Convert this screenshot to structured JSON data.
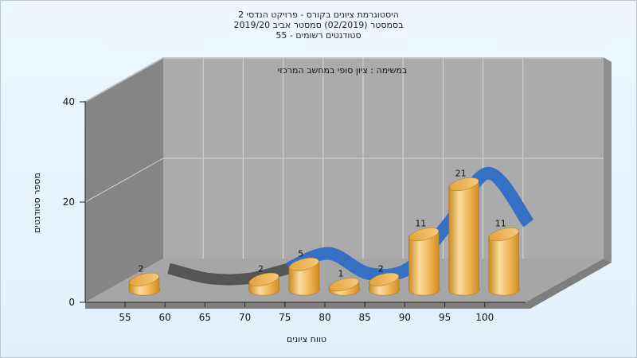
{
  "chart_data": {
    "type": "bar",
    "title_lines": [
      "היסטוגרמת ציונים בקורס - פרויקט הנדסי 2",
      "בסמסטר  (02/2019)  סמסטר אביב 2019/20",
      "סטודנטים רשומים - 55"
    ],
    "subtitle": "במשימה : ציון סופי במחשב המרכזי",
    "xlabel": "טווח ציונים",
    "ylabel": "מספר סטודנטים",
    "ylim": [
      0,
      40
    ],
    "yticks": [
      0,
      20,
      40
    ],
    "categories": [
      "55",
      "60",
      "65",
      "70",
      "75",
      "80",
      "85",
      "90",
      "95",
      "100"
    ],
    "values": [
      2,
      0,
      0,
      2,
      5,
      1,
      2,
      11,
      21,
      11
    ],
    "data_labels": [
      "2",
      "",
      "",
      "2",
      "5",
      "1",
      "2",
      "11",
      "21",
      "11"
    ],
    "grid": true,
    "legend": "none",
    "colors": {
      "bar_light": "#fbdca0",
      "bar_mid": "#f0b050",
      "bar_dark": "#c98a1f",
      "trend_ribbon": "#3570c4",
      "trend_ribbon_shadow": "#555555",
      "back_wall": "#ababab",
      "side_wall": "#858585",
      "floor": "#a6a6a6"
    }
  }
}
